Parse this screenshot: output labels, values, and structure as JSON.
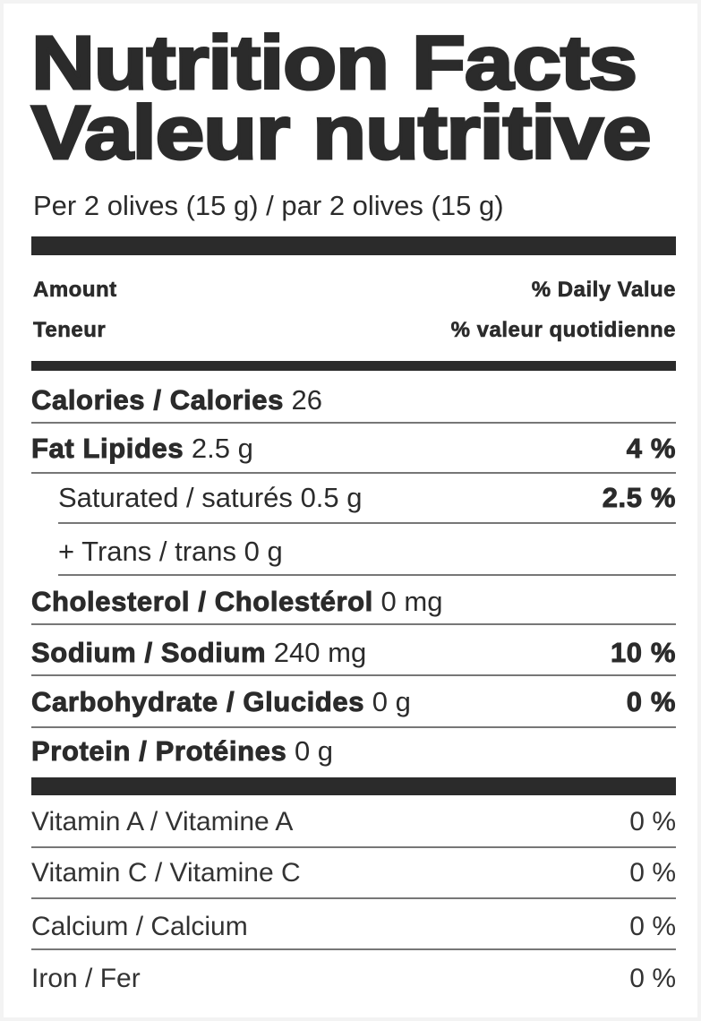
{
  "title_en": "Nutrition Facts",
  "title_fr": "Valeur nutritive",
  "serving": "Per 2 olives (15 g) / par 2 olives (15 g)",
  "header": {
    "amount_en": "Amount",
    "amount_fr": "Teneur",
    "dv_en": "% Daily Value",
    "dv_fr": "% valeur quotidienne"
  },
  "nutrients": [
    {
      "label": "Calories / Calories",
      "amount": "26",
      "dv": ""
    },
    {
      "label": "Fat Lipides",
      "amount": "2.5 g",
      "dv": "4 %"
    },
    {
      "label": "Saturated / saturés",
      "amount": "0.5 g",
      "dv": "2.5 %"
    },
    {
      "label": "+ Trans / trans",
      "amount": "0 g",
      "dv": ""
    },
    {
      "label": "Cholesterol / Cholestérol",
      "amount": "0 mg",
      "dv": ""
    },
    {
      "label": "Sodium / Sodium",
      "amount": "240 mg",
      "dv": "10 %"
    },
    {
      "label": "Carbohydrate / Glucides",
      "amount": "0 g",
      "dv": "0 %"
    },
    {
      "label": "Protein / Protéines",
      "amount": "0 g",
      "dv": ""
    }
  ],
  "vitamins": [
    {
      "label": "Vitamin A / Vitamine A",
      "dv": "0 %"
    },
    {
      "label": "Vitamin C / Vitamine C",
      "dv": "0 %"
    },
    {
      "label": "Calcium / Calcium",
      "dv": "0 %"
    },
    {
      "label": "Iron / Fer",
      "dv": "0 %"
    }
  ]
}
